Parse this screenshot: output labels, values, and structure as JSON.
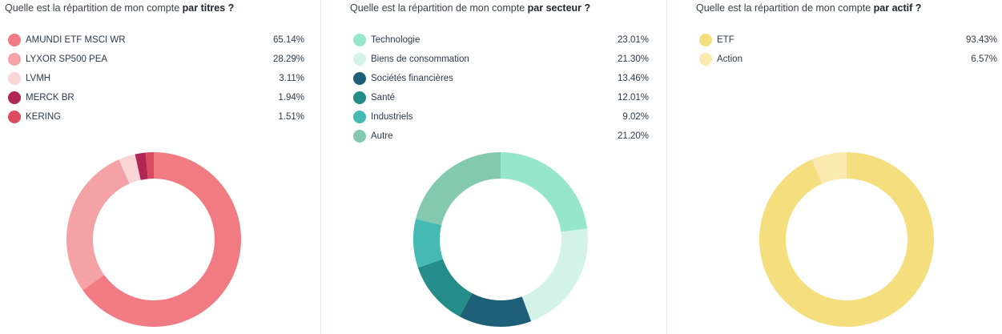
{
  "chart_data": [
    {
      "type": "pie",
      "title_prefix": "Quelle est la répartition de mon compte ",
      "title_bold": "par titres ?",
      "slices": [
        {
          "label": "AMUNDI ETF MSCI WR",
          "value": 65.14,
          "display": "65.14%",
          "color": "#f07b83"
        },
        {
          "label": "LYXOR SP500 PEA",
          "value": 28.29,
          "display": "28.29%",
          "color": "#f4a2a5"
        },
        {
          "label": "LVMH",
          "value": 3.11,
          "display": "3.11%",
          "color": "#fad5d6"
        },
        {
          "label": "MERCK BR",
          "value": 1.94,
          "display": "1.94%",
          "color": "#b02655"
        },
        {
          "label": "KERING",
          "value": 1.51,
          "display": "1.51%",
          "color": "#dc4a5f"
        }
      ]
    },
    {
      "type": "pie",
      "title_prefix": "Quelle est la répartition de mon compte ",
      "title_bold": "par secteur ?",
      "slices": [
        {
          "label": "Technologie",
          "value": 23.01,
          "display": "23.01%",
          "color": "#96e6cc"
        },
        {
          "label": "Biens de consommation",
          "value": 21.3,
          "display": "21.30%",
          "color": "#d3f3e8"
        },
        {
          "label": "Sociétés financières",
          "value": 13.46,
          "display": "13.46%",
          "color": "#1e5f78"
        },
        {
          "label": "Santé",
          "value": 12.01,
          "display": "12.01%",
          "color": "#248d89"
        },
        {
          "label": "Industriels",
          "value": 9.02,
          "display": "9.02%",
          "color": "#45b9b4"
        },
        {
          "label": "Autre",
          "value": 21.2,
          "display": "21.20%",
          "color": "#82c9b0"
        }
      ]
    },
    {
      "type": "pie",
      "title_prefix": "Quelle est la répartition de mon compte ",
      "title_bold": "par actif ?",
      "slices": [
        {
          "label": "ETF",
          "value": 93.43,
          "display": "93.43%",
          "color": "#f5de7d"
        },
        {
          "label": "Action",
          "value": 6.57,
          "display": "6.57%",
          "color": "#fbeab0"
        }
      ]
    }
  ]
}
